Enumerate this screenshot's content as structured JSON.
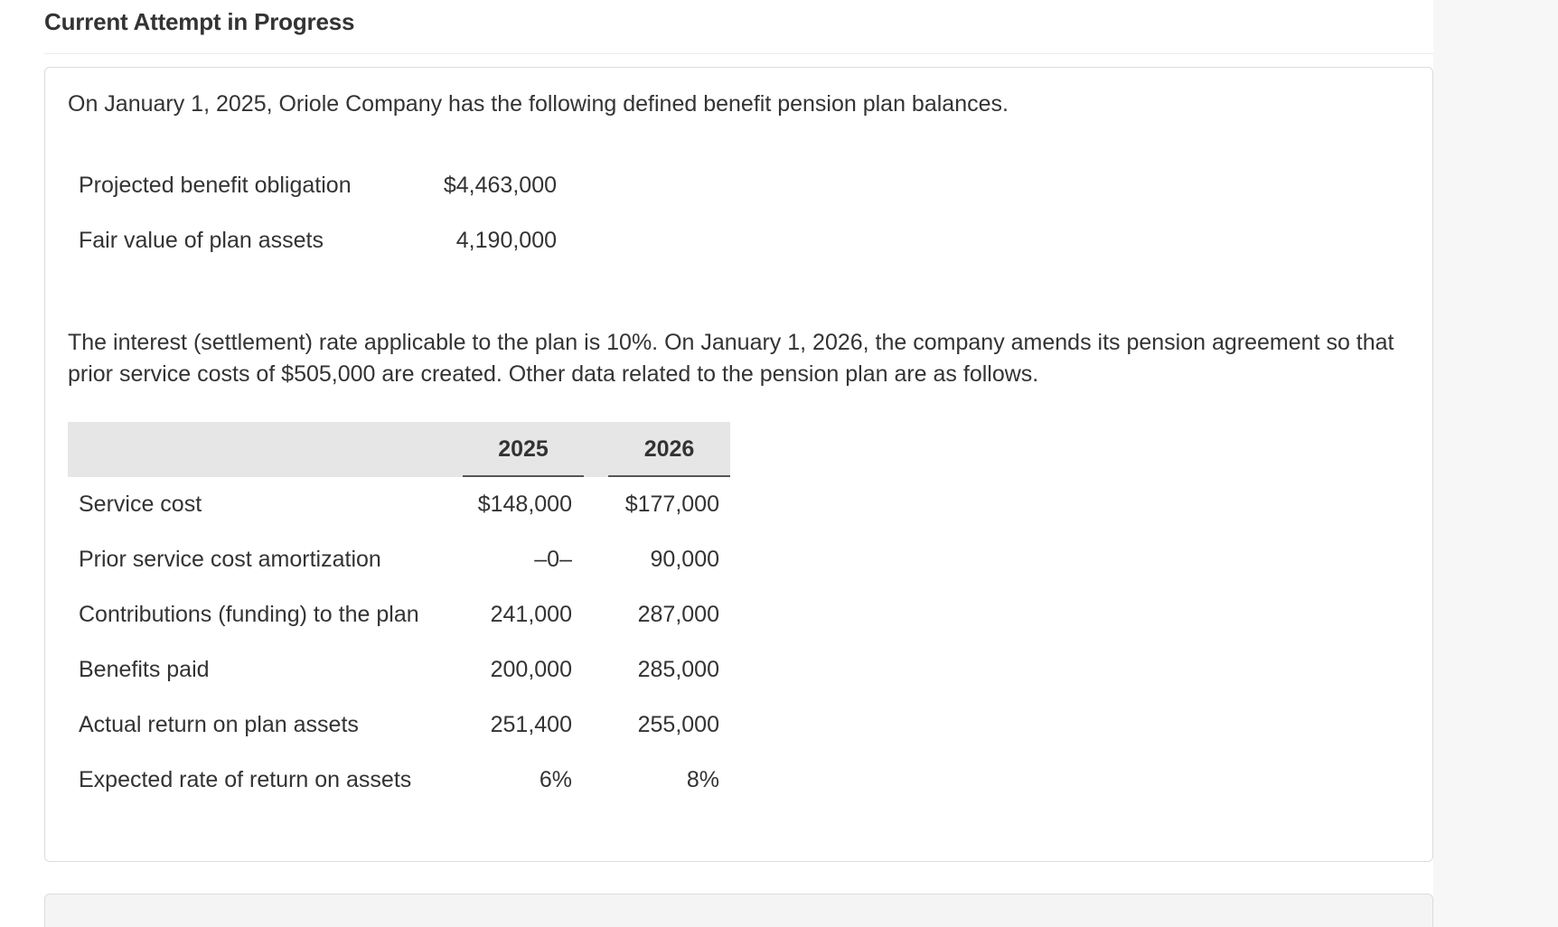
{
  "header": {
    "title": "Current Attempt in Progress"
  },
  "question": {
    "intro": "On January 1, 2025, Oriole Company has the following defined benefit pension plan balances.",
    "balances": [
      {
        "label": "Projected benefit obligation",
        "value": "$4,463,000"
      },
      {
        "label": "Fair value of plan assets",
        "value": "4,190,000"
      }
    ],
    "details": "The interest (settlement) rate applicable to the plan is 10%. On January 1, 2026, the company amends its pension agreement so that prior service costs of $505,000 are created. Other data related to the pension plan are as follows.",
    "table": {
      "columns": [
        "2025",
        "2026"
      ],
      "rows": [
        {
          "label": "Service cost",
          "v2025": "$148,000",
          "v2026": "$177,000"
        },
        {
          "label": "Prior service cost amortization",
          "v2025": "–0–",
          "v2026": "90,000"
        },
        {
          "label": "Contributions (funding) to the plan",
          "v2025": "241,000",
          "v2026": "287,000"
        },
        {
          "label": "Benefits paid",
          "v2025": "200,000",
          "v2026": "285,000"
        },
        {
          "label": "Actual return on plan assets",
          "v2025": "251,400",
          "v2026": "255,000"
        },
        {
          "label": "Expected rate of return on assets",
          "v2025": "6%",
          "v2026": "8%"
        }
      ]
    }
  },
  "colors": {
    "text": "#333333",
    "table_header_bg": "#e6e6e6",
    "card_border": "#dcdcdc",
    "page_bg": "#f7f7f7"
  }
}
